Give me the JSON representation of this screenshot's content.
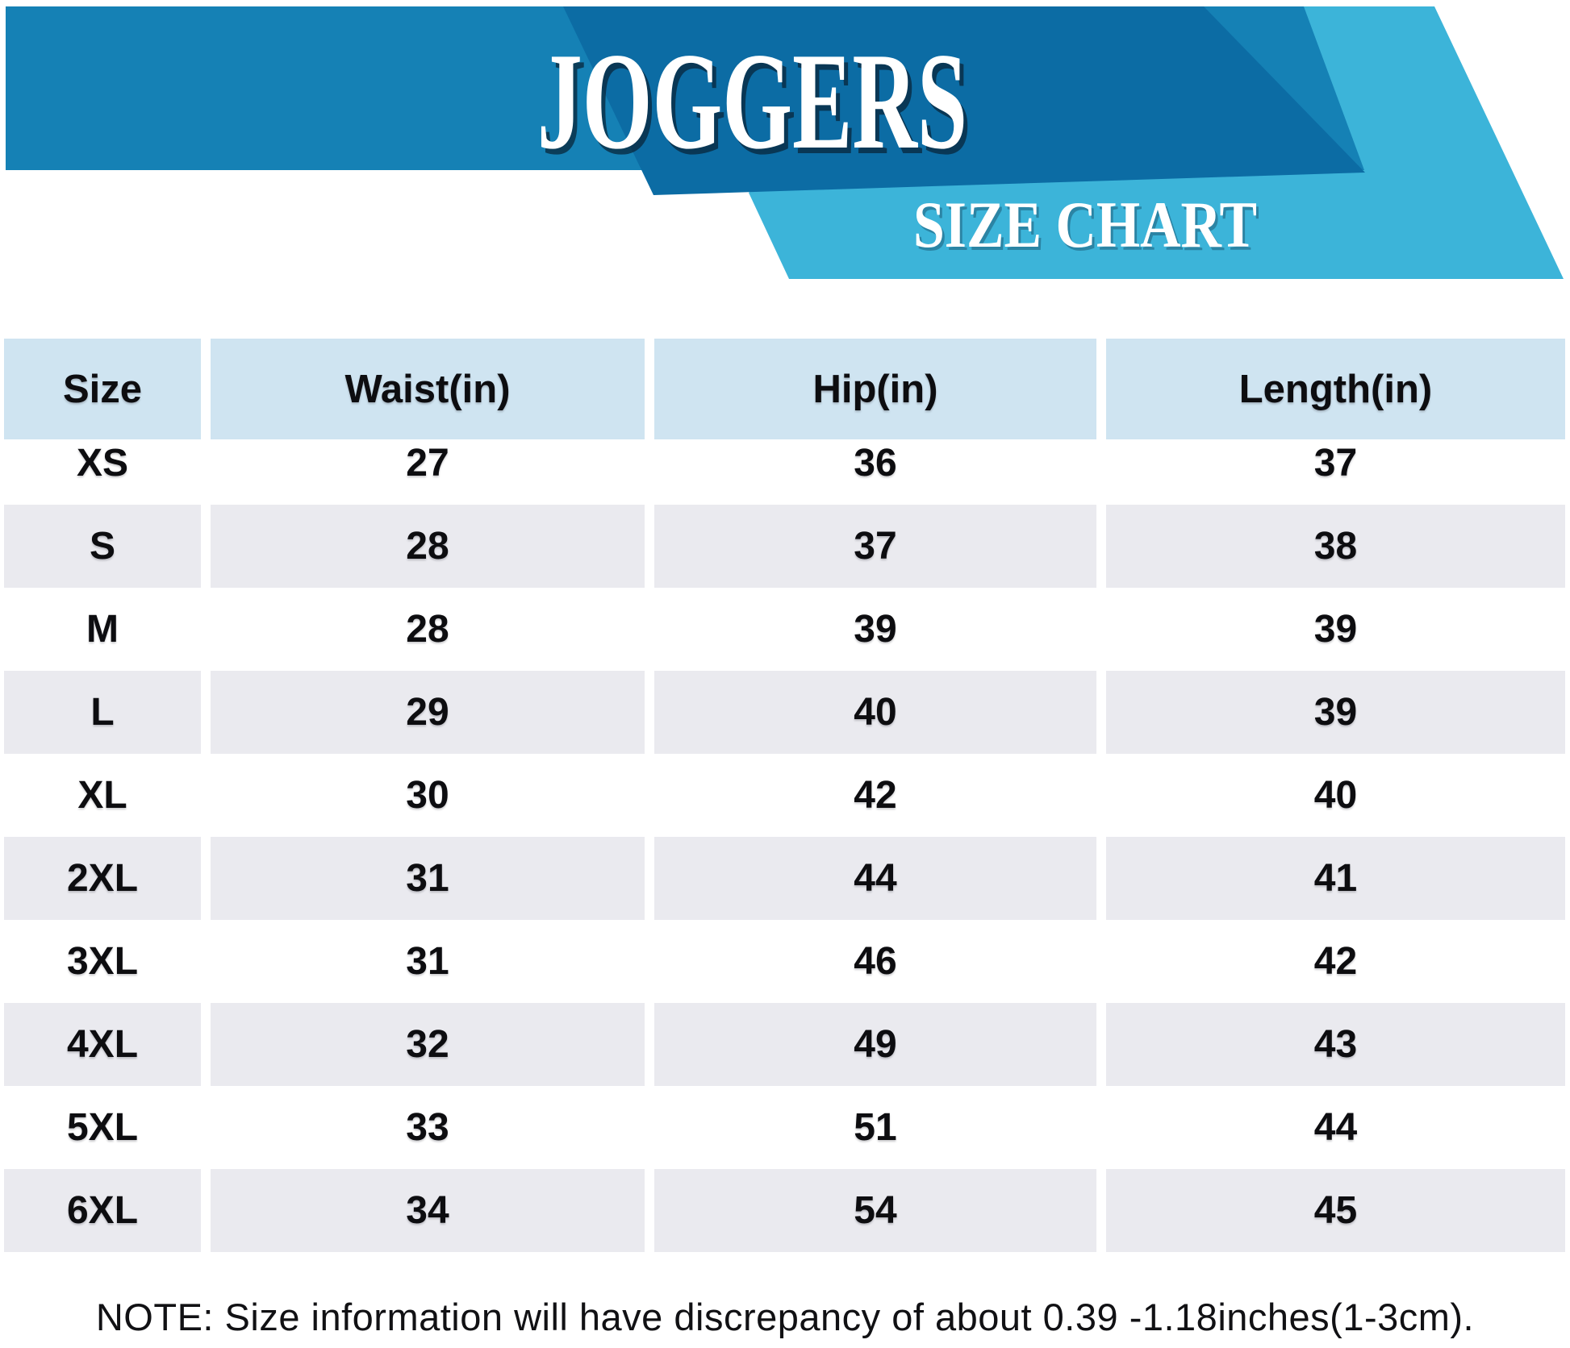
{
  "banner": {
    "title": "JOGGERS",
    "subtitle": "SIZE CHART"
  },
  "colors": {
    "banner-blue": "#1581B5",
    "banner-dark-blue": "#0C6CA4",
    "banner-light-blue": "#3CB4D9",
    "header-cell": "#CFE4F1",
    "row-alt": "#EAEAEF"
  },
  "chart_data": {
    "type": "table",
    "title": "JOGGERS",
    "subtitle": "SIZE CHART",
    "columns": [
      "Size",
      "Waist(in)",
      "Hip(in)",
      "Length(in)"
    ],
    "rows": [
      {
        "size": "XS",
        "waist": "27",
        "hip": "36",
        "length": "37"
      },
      {
        "size": "S",
        "waist": "28",
        "hip": "37",
        "length": "38"
      },
      {
        "size": "M",
        "waist": "28",
        "hip": "39",
        "length": "39"
      },
      {
        "size": "L",
        "waist": "29",
        "hip": "40",
        "length": "39"
      },
      {
        "size": "XL",
        "waist": "30",
        "hip": "42",
        "length": "40"
      },
      {
        "size": "2XL",
        "waist": "31",
        "hip": "44",
        "length": "41"
      },
      {
        "size": "3XL",
        "waist": "31",
        "hip": "46",
        "length": "42"
      },
      {
        "size": "4XL",
        "waist": "32",
        "hip": "49",
        "length": "43"
      },
      {
        "size": "5XL",
        "waist": "33",
        "hip": "51",
        "length": "44"
      },
      {
        "size": "6XL",
        "waist": "34",
        "hip": "54",
        "length": "45"
      }
    ]
  },
  "note": "NOTE: Size information will have discrepancy of about 0.39 -1.18inches(1-3cm)."
}
